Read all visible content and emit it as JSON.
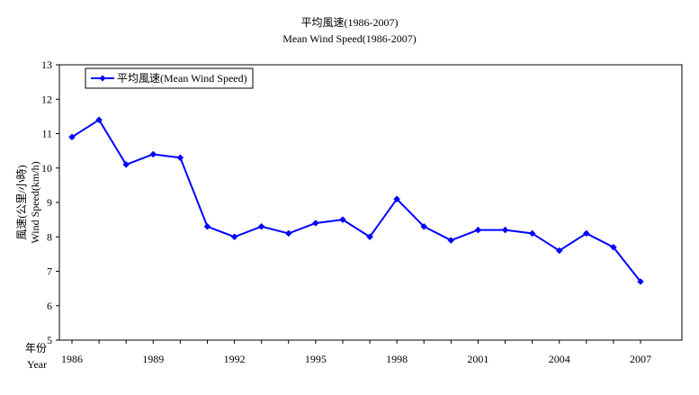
{
  "chart_data": {
    "type": "line",
    "title": "平均風速(1986-2007)",
    "subtitle": "Mean Wind Speed(1986-2007)",
    "ylabel_cn": "風速(公里/小時)",
    "ylabel_en": "Wind Speed(km/h)",
    "xlabel_cn": "年份",
    "xlabel_en": "Year",
    "ylim": [
      5,
      13
    ],
    "yticks": [
      5,
      6,
      7,
      8,
      9,
      10,
      11,
      12,
      13
    ],
    "xlim": [
      1986,
      2007
    ],
    "xtick_labels": [
      "1986",
      "1989",
      "1992",
      "1995",
      "1998",
      "2001",
      "2004",
      "2007"
    ],
    "legend": "平均風速(Mean Wind Speed)",
    "legend_position": "top-left",
    "color": "#0000ff",
    "series": [
      {
        "name": "平均風速(Mean Wind Speed)",
        "x": [
          1986,
          1987,
          1988,
          1989,
          1990,
          1991,
          1992,
          1993,
          1994,
          1995,
          1996,
          1997,
          1998,
          1999,
          2000,
          2001,
          2002,
          2003,
          2004,
          2005,
          2006,
          2007
        ],
        "values": [
          10.9,
          11.4,
          10.1,
          10.4,
          10.3,
          8.3,
          8.0,
          8.3,
          8.1,
          8.4,
          8.5,
          8.0,
          9.1,
          8.3,
          7.9,
          8.2,
          8.2,
          8.1,
          7.6,
          8.1,
          7.7,
          6.7
        ]
      }
    ]
  }
}
